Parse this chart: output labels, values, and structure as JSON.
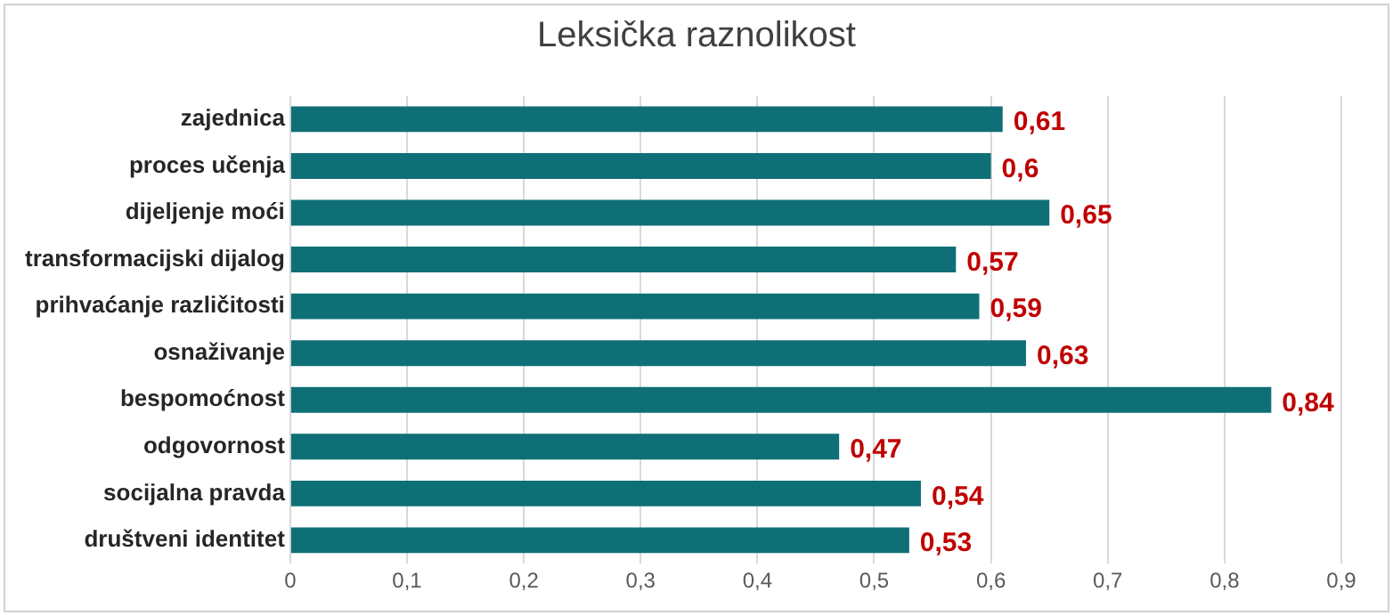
{
  "chart_data": {
    "type": "bar",
    "orientation": "horizontal",
    "title": "Leksička raznolikost",
    "categories": [
      "zajednica",
      "proces učenja",
      "dijeljenje moći",
      "transformacijski dijalog",
      "prihvaćanje različitosti",
      "osnaživanje",
      "bespomoćnost",
      "odgovornost",
      "socijalna pravda",
      "društveni identitet"
    ],
    "values": [
      0.61,
      0.6,
      0.65,
      0.57,
      0.59,
      0.63,
      0.84,
      0.47,
      0.54,
      0.53
    ],
    "value_labels": [
      "0,61",
      "0,6",
      "0,65",
      "0,57",
      "0,59",
      "0,63",
      "0,84",
      "0,47",
      "0,54",
      "0,53"
    ],
    "color": "#0f6f77",
    "xlim": [
      0,
      0.9
    ],
    "xticks": [
      0,
      {
        "value": 0.1,
        "label": "0,1"
      },
      {
        "value": 0.2,
        "label": "0,2"
      },
      {
        "value": 0.3,
        "label": "0,3"
      },
      {
        "value": 0.4,
        "label": "0,4"
      },
      {
        "value": 0.5,
        "label": "0,5"
      },
      {
        "value": 0.6,
        "label": "0,6"
      },
      {
        "value": 0.7,
        "label": "0,7"
      },
      {
        "value": 0.8,
        "label": "0,8"
      },
      {
        "value": 0.9,
        "label": "0,9"
      }
    ],
    "grid": "x",
    "legend": false
  }
}
